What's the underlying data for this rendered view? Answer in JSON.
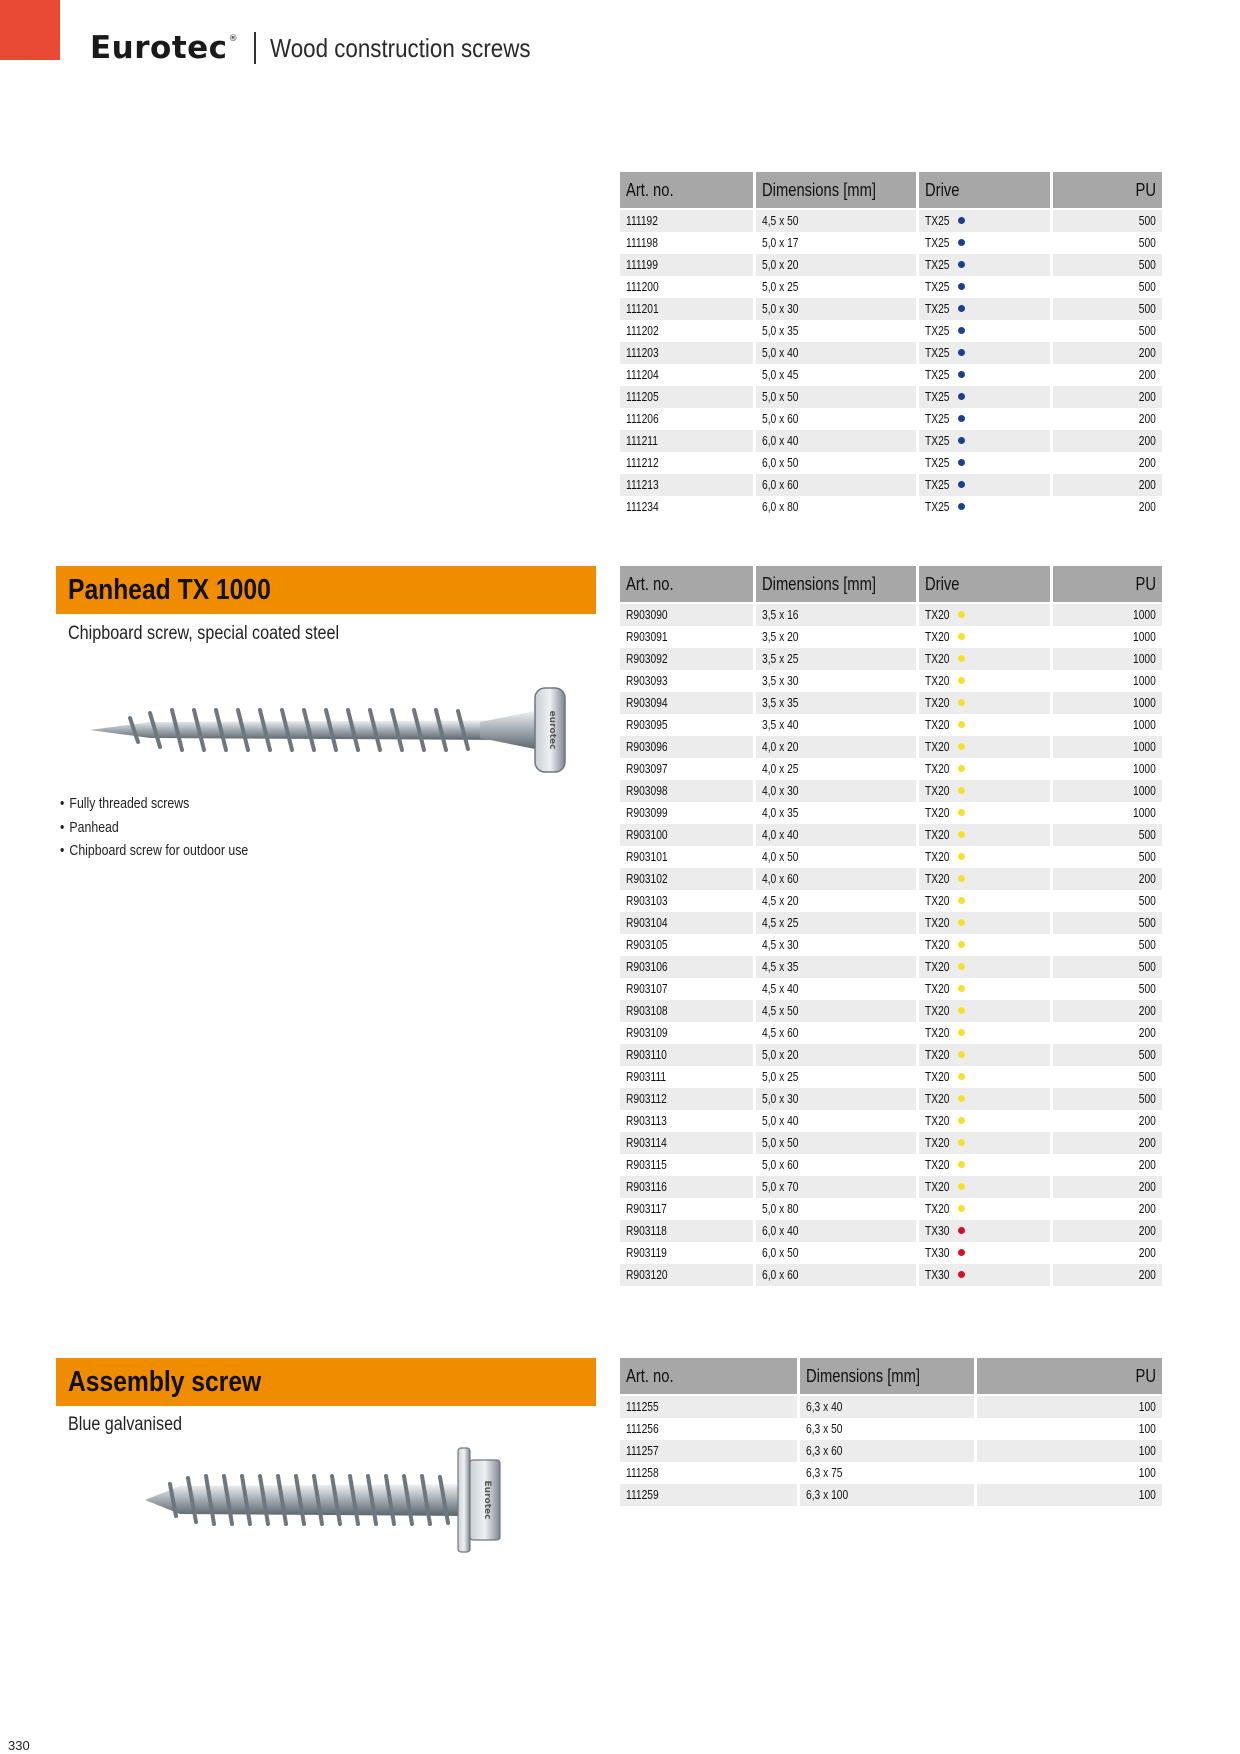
{
  "header": {
    "brand": "Eurotec",
    "registered": "®",
    "title": "Wood construction screws"
  },
  "colors": {
    "accent_orange": "#f08c00",
    "corner_red": "#e84a36",
    "dot_blue": "#1a3f8c",
    "dot_yellow": "#f2e22a",
    "dot_red": "#d4112a"
  },
  "table1": {
    "headers": [
      "Art. no.",
      "Dimensions [mm]",
      "Drive",
      "PU"
    ],
    "dot": "blue",
    "rows": [
      [
        "111192",
        "4,5 x 50",
        "TX25",
        "500"
      ],
      [
        "111198",
        "5,0 x 17",
        "TX25",
        "500"
      ],
      [
        "111199",
        "5,0 x 20",
        "TX25",
        "500"
      ],
      [
        "111200",
        "5,0 x 25",
        "TX25",
        "500"
      ],
      [
        "111201",
        "5,0 x 30",
        "TX25",
        "500"
      ],
      [
        "111202",
        "5,0 x 35",
        "TX25",
        "500"
      ],
      [
        "111203",
        "5,0 x 40",
        "TX25",
        "200"
      ],
      [
        "111204",
        "5,0 x 45",
        "TX25",
        "200"
      ],
      [
        "111205",
        "5,0 x 50",
        "TX25",
        "200"
      ],
      [
        "111206",
        "5,0 x 60",
        "TX25",
        "200"
      ],
      [
        "111211",
        "6,0 x 40",
        "TX25",
        "200"
      ],
      [
        "111212",
        "6,0 x 50",
        "TX25",
        "200"
      ],
      [
        "111213",
        "6,0 x 60",
        "TX25",
        "200"
      ],
      [
        "111234",
        "6,0 x 80",
        "TX25",
        "200"
      ]
    ]
  },
  "panhead": {
    "title": "Panhead TX 1000",
    "subtitle": "Chipboard screw, special coated steel",
    "bullets": [
      "Fully threaded screws",
      "Panhead",
      "Chipboard screw for outdoor use"
    ],
    "head_text": "eurotec",
    "icon": "panhead-screw-icon"
  },
  "table2": {
    "headers": [
      "Art. no.",
      "Dimensions [mm]",
      "Drive",
      "PU"
    ],
    "rows": [
      [
        "R903090",
        "3,5 x 16",
        "TX20",
        "1000",
        "yellow"
      ],
      [
        "R903091",
        "3,5 x 20",
        "TX20",
        "1000",
        "yellow"
      ],
      [
        "R903092",
        "3,5 x 25",
        "TX20",
        "1000",
        "yellow"
      ],
      [
        "R903093",
        "3,5 x 30",
        "TX20",
        "1000",
        "yellow"
      ],
      [
        "R903094",
        "3,5 x 35",
        "TX20",
        "1000",
        "yellow"
      ],
      [
        "R903095",
        "3,5 x 40",
        "TX20",
        "1000",
        "yellow"
      ],
      [
        "R903096",
        "4,0 x 20",
        "TX20",
        "1000",
        "yellow"
      ],
      [
        "R903097",
        "4,0 x 25",
        "TX20",
        "1000",
        "yellow"
      ],
      [
        "R903098",
        "4,0 x 30",
        "TX20",
        "1000",
        "yellow"
      ],
      [
        "R903099",
        "4,0 x 35",
        "TX20",
        "1000",
        "yellow"
      ],
      [
        "R903100",
        "4,0 x 40",
        "TX20",
        "500",
        "yellow"
      ],
      [
        "R903101",
        "4,0 x 50",
        "TX20",
        "500",
        "yellow"
      ],
      [
        "R903102",
        "4,0 x 60",
        "TX20",
        "200",
        "yellow"
      ],
      [
        "R903103",
        "4,5 x 20",
        "TX20",
        "500",
        "yellow"
      ],
      [
        "R903104",
        "4,5 x 25",
        "TX20",
        "500",
        "yellow"
      ],
      [
        "R903105",
        "4,5 x 30",
        "TX20",
        "500",
        "yellow"
      ],
      [
        "R903106",
        "4,5 x 35",
        "TX20",
        "500",
        "yellow"
      ],
      [
        "R903107",
        "4,5 x 40",
        "TX20",
        "500",
        "yellow"
      ],
      [
        "R903108",
        "4,5 x 50",
        "TX20",
        "200",
        "yellow"
      ],
      [
        "R903109",
        "4,5 x 60",
        "TX20",
        "200",
        "yellow"
      ],
      [
        "R903110",
        "5,0 x 20",
        "TX20",
        "500",
        "yellow"
      ],
      [
        "R903111",
        "5,0 x 25",
        "TX20",
        "500",
        "yellow"
      ],
      [
        "R903112",
        "5,0 x 30",
        "TX20",
        "500",
        "yellow"
      ],
      [
        "R903113",
        "5,0 x 40",
        "TX20",
        "200",
        "yellow"
      ],
      [
        "R903114",
        "5,0 x 50",
        "TX20",
        "200",
        "yellow"
      ],
      [
        "R903115",
        "5,0 x 60",
        "TX20",
        "200",
        "yellow"
      ],
      [
        "R903116",
        "5,0 x 70",
        "TX20",
        "200",
        "yellow"
      ],
      [
        "R903117",
        "5,0 x 80",
        "TX20",
        "200",
        "yellow"
      ],
      [
        "R903118",
        "6,0 x 40",
        "TX30",
        "200",
        "red"
      ],
      [
        "R903119",
        "6,0 x 50",
        "TX30",
        "200",
        "red"
      ],
      [
        "R903120",
        "6,0 x 60",
        "TX30",
        "200",
        "red"
      ]
    ]
  },
  "assembly": {
    "title": "Assembly screw",
    "subtitle": "Blue galvanised",
    "head_text": "Eurotec",
    "icon": "hex-head-screw-icon"
  },
  "table3": {
    "headers": [
      "Art. no.",
      "Dimensions [mm]",
      "PU"
    ],
    "rows": [
      [
        "111255",
        "6,3 x 40",
        "100"
      ],
      [
        "111256",
        "6,3 x 50",
        "100"
      ],
      [
        "111257",
        "6,3 x 60",
        "100"
      ],
      [
        "111258",
        "6,3 x 75",
        "100"
      ],
      [
        "111259",
        "6,3 x 100",
        "100"
      ]
    ]
  },
  "page_number": "330"
}
